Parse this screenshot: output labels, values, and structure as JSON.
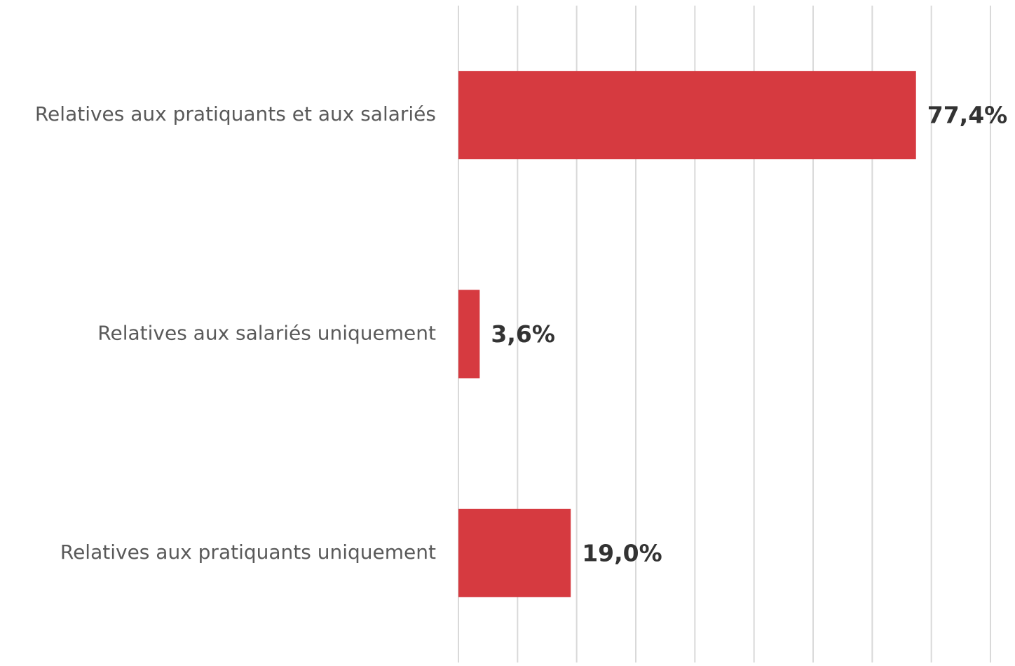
{
  "chart_data": {
    "type": "hbar",
    "categories": [
      "Relatives aux pratiquants et aux salariés",
      "Relatives aux salariés uniquement",
      "Relatives aux pratiquants uniquement"
    ],
    "values": [
      77.4,
      3.6,
      19.0
    ],
    "value_labels": [
      "77,4%",
      "3,6%",
      "19,0%"
    ],
    "color": "#d63a40",
    "xlim": [
      0,
      90
    ],
    "xticks": [
      0,
      10,
      20,
      30,
      40,
      50,
      60,
      70,
      80,
      90
    ],
    "grid": true
  }
}
